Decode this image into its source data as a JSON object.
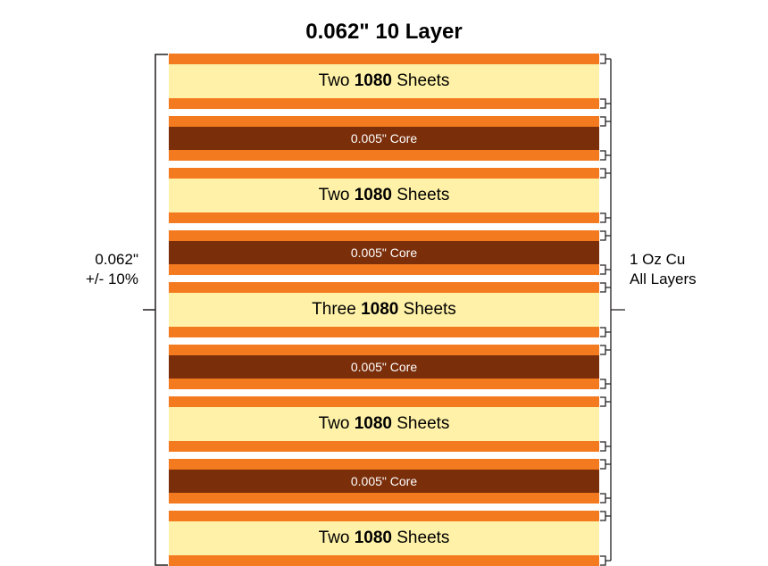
{
  "title": "0.062\" 10 Layer",
  "colors": {
    "copper": "#f47a20",
    "prepreg": "#fff2a8",
    "core": "#7a2e0a",
    "bracket": "#231f20",
    "background": "#ffffff"
  },
  "left_annotation": {
    "line1": "0.062\"",
    "line2": "+/- 10%"
  },
  "right_annotation": {
    "line1": "1 Oz Cu",
    "line2": "All Layers"
  },
  "prepreg_labels": [
    {
      "prefix": "Two ",
      "bold": "1080",
      "suffix": " Sheets"
    },
    {
      "prefix": "Two ",
      "bold": "1080",
      "suffix": " Sheets"
    },
    {
      "prefix": "Three ",
      "bold": "1080",
      "suffix": " Sheets"
    },
    {
      "prefix": "Two ",
      "bold": "1080",
      "suffix": " Sheets"
    },
    {
      "prefix": "Two ",
      "bold": "1080",
      "suffix": " Sheets"
    }
  ],
  "core_label": "0.005\" Core",
  "structure": {
    "type": "layered-stackup",
    "sequence": [
      "copper",
      "prepreg",
      "copper",
      "gap",
      "copper",
      "core",
      "copper",
      "gap",
      "copper",
      "prepreg",
      "copper",
      "gap",
      "copper",
      "core",
      "copper",
      "gap",
      "copper",
      "prepreg",
      "copper",
      "gap",
      "copper",
      "core",
      "copper",
      "gap",
      "copper",
      "prepreg",
      "copper",
      "gap",
      "copper",
      "core",
      "copper",
      "gap",
      "copper",
      "prepreg",
      "copper"
    ],
    "heights": {
      "copper": 12,
      "prepreg": 38,
      "core": 26,
      "gap": 8
    },
    "fontsize": {
      "title": 24,
      "prepreg": 19,
      "core": 14,
      "annotation": 17
    }
  }
}
